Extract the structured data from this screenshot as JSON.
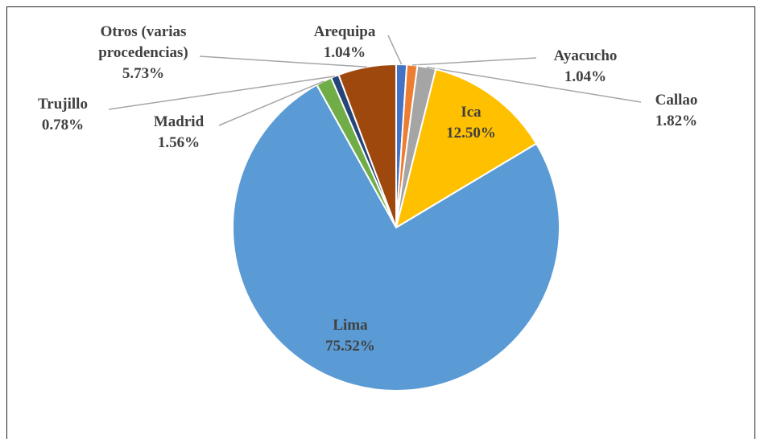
{
  "chart_data": {
    "type": "pie",
    "categories": [
      "Arequipa",
      "Ayacucho",
      "Callao",
      "Ica",
      "Lima",
      "Madrid",
      "Trujillo",
      "Otros (varias procedencias)"
    ],
    "values": [
      1.04,
      1.04,
      1.82,
      12.5,
      75.52,
      1.56,
      0.78,
      5.73
    ],
    "value_labels": [
      "1.04%",
      "1.04%",
      "1.82%",
      "12.50%",
      "75.52%",
      "1.56%",
      "0.78%",
      "5.73%"
    ],
    "colors": [
      "#4472c4",
      "#ed7d31",
      "#a5a5a5",
      "#ffc000",
      "#5b9bd5",
      "#70ad47",
      "#264478",
      "#9e480e"
    ]
  }
}
